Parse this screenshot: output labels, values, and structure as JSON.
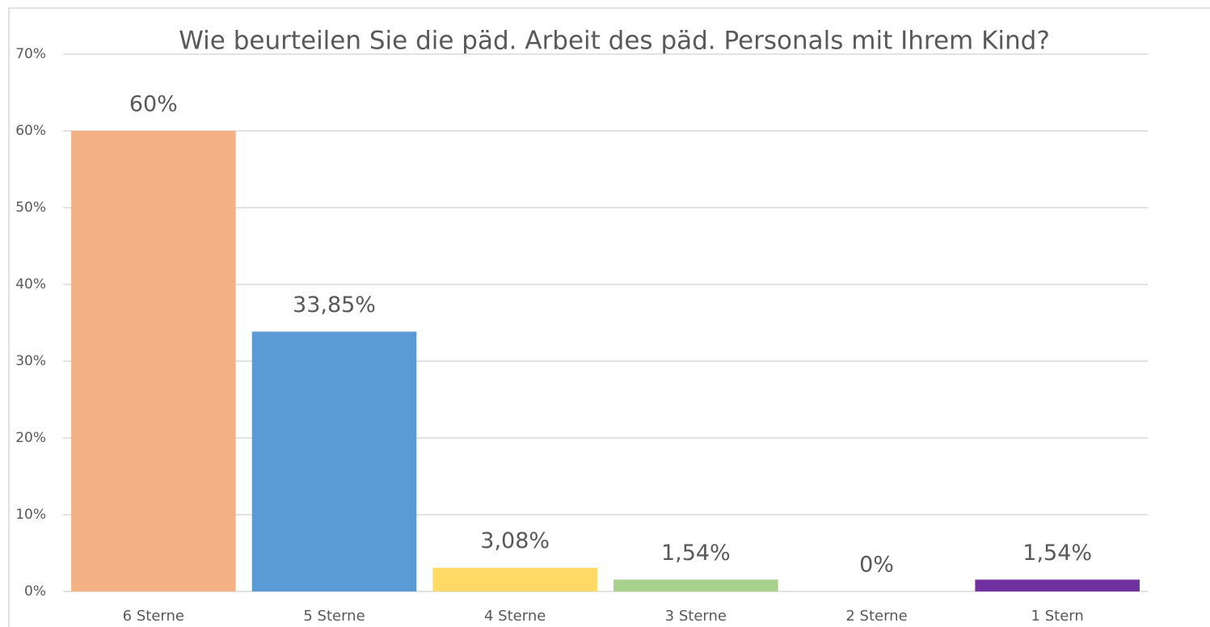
{
  "chart_data": {
    "type": "bar",
    "title": "Wie beurteilen Sie die päd. Arbeit des päd. Personals mit Ihrem Kind?",
    "categories": [
      "6 Sterne",
      "5 Sterne",
      "4 Sterne",
      "3 Sterne",
      "2 Sterne",
      "1 Stern"
    ],
    "values": [
      60,
      33.85,
      3.08,
      1.54,
      0,
      1.54
    ],
    "value_labels": [
      "60%",
      "33,85%",
      "3,08%",
      "1,54%",
      "0%",
      "1,54%"
    ],
    "colors": [
      "#f4b183",
      "#5b9bd5",
      "#ffd966",
      "#a9d18e",
      "#bfbfbf",
      "#7030a0"
    ],
    "ylim": [
      0,
      70
    ],
    "yticks": [
      {
        "value": 0,
        "label": "0%"
      },
      {
        "value": 10,
        "label": "10%"
      },
      {
        "value": 20,
        "label": "20%"
      },
      {
        "value": 30,
        "label": "30%"
      },
      {
        "value": 40,
        "label": "40%"
      },
      {
        "value": 50,
        "label": "50%"
      },
      {
        "value": 60,
        "label": "60%"
      },
      {
        "value": 70,
        "label": "70%"
      }
    ],
    "grid": true
  }
}
